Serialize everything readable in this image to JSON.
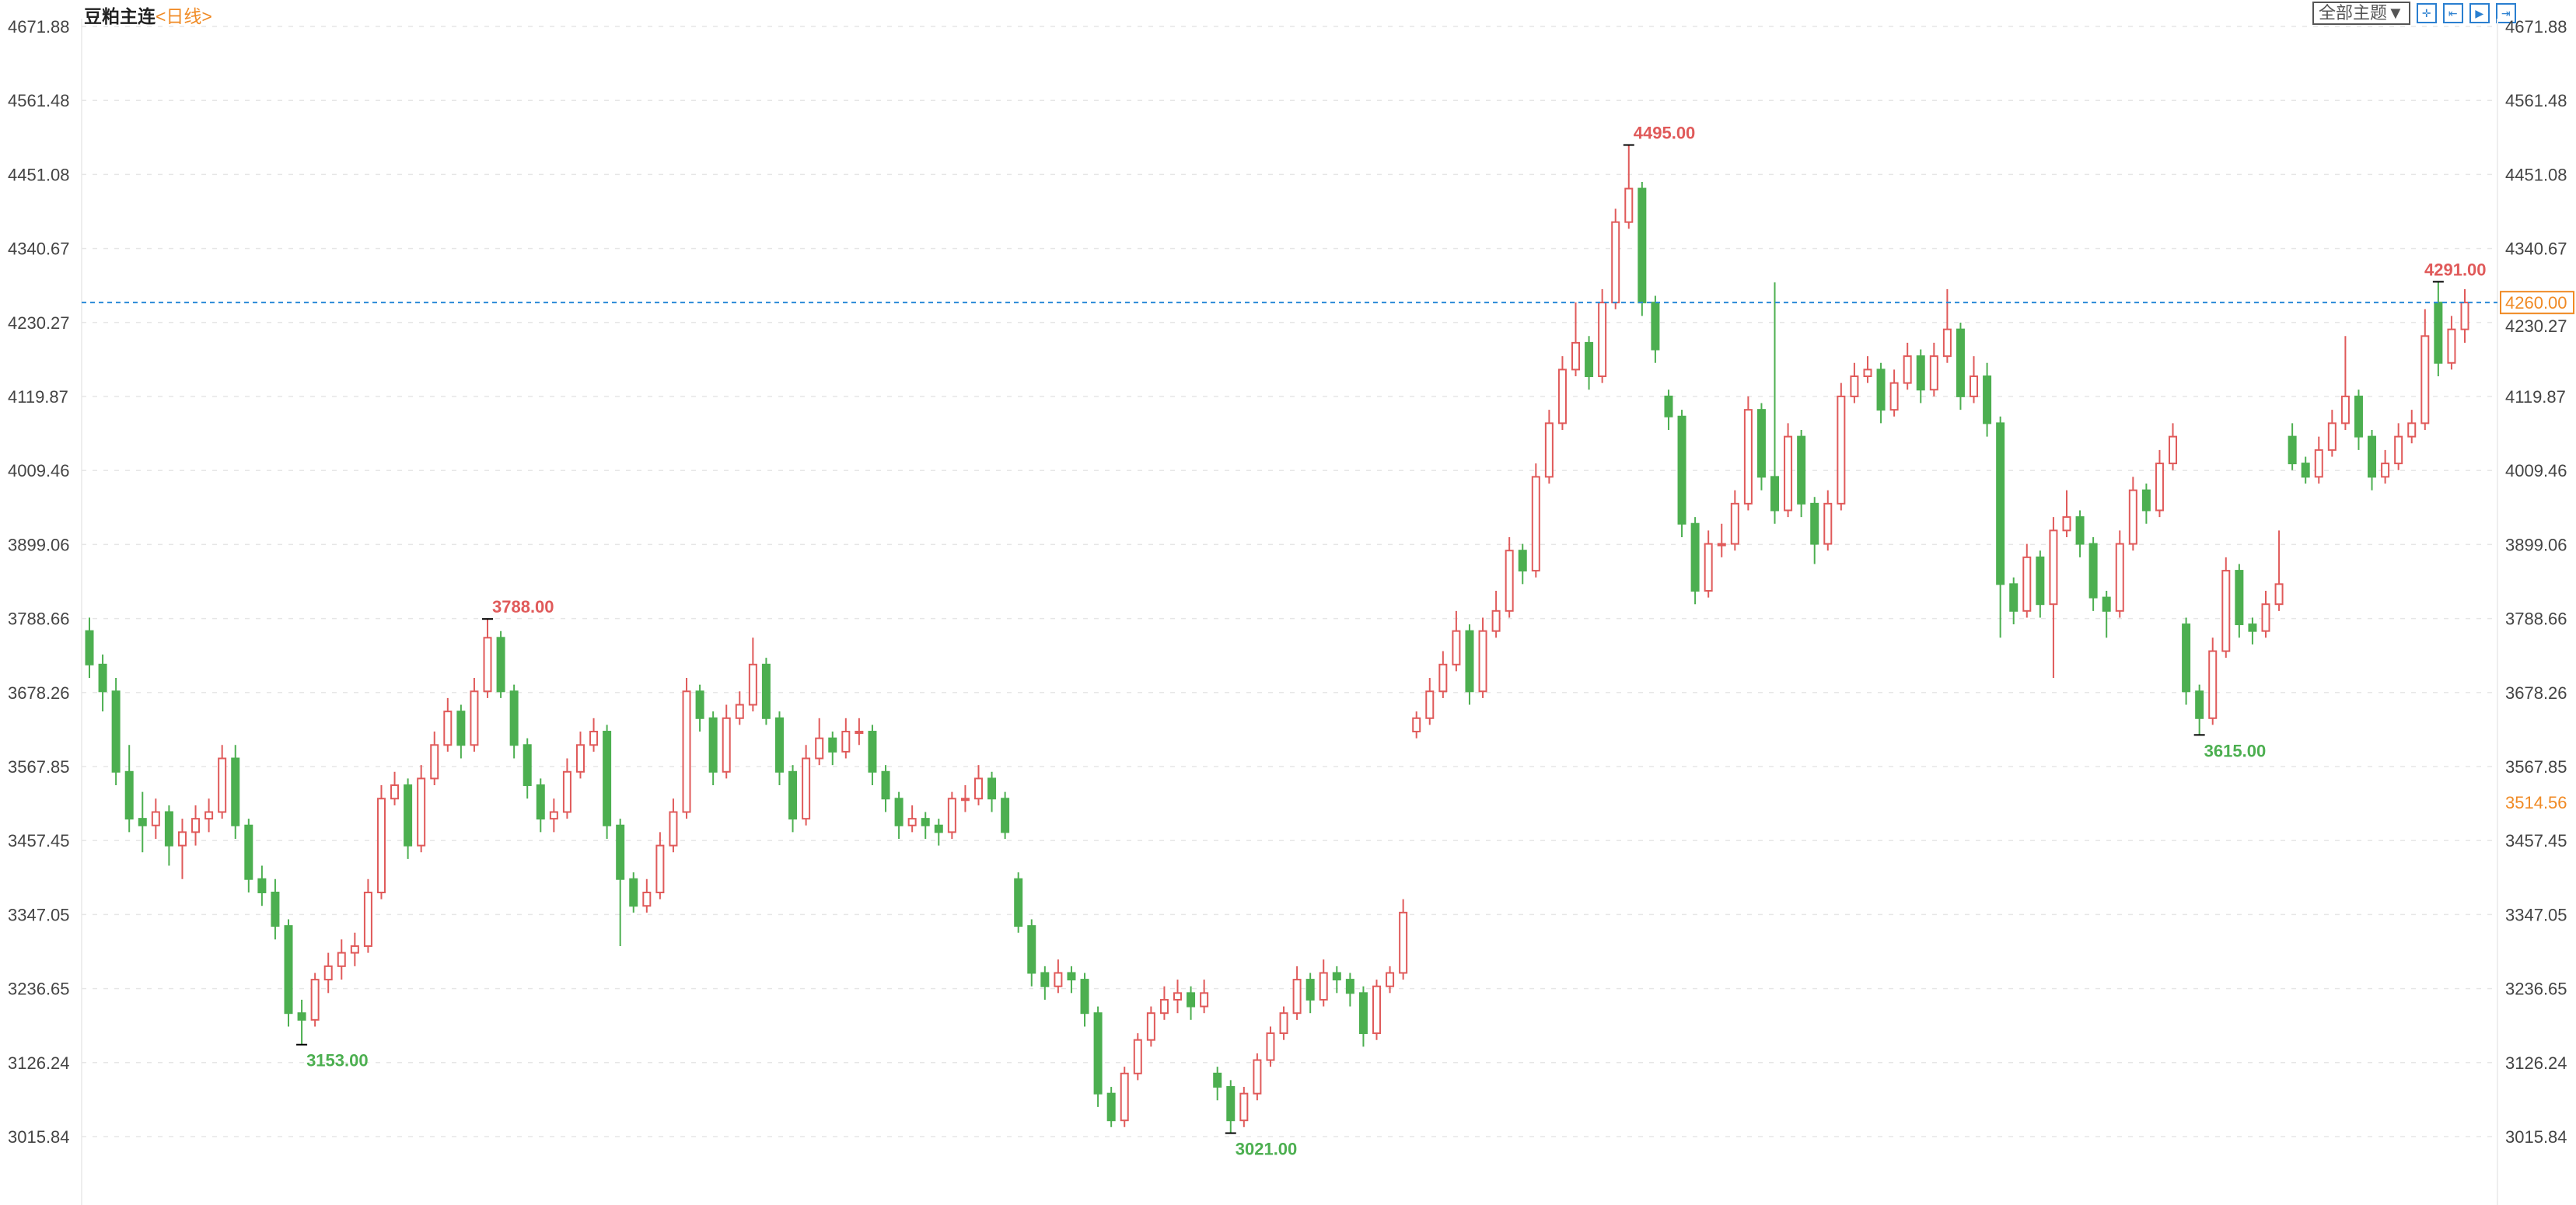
{
  "header": {
    "title": "豆粕主连",
    "period": "<日线>",
    "theme_select": "全部主题▼",
    "tools": [
      {
        "name": "crosshair-icon",
        "glyph": "✛"
      },
      {
        "name": "zoom-range-icon",
        "glyph": "⇤"
      },
      {
        "name": "play-icon",
        "glyph": "▶"
      },
      {
        "name": "exit-icon",
        "glyph": "⇥"
      }
    ]
  },
  "colors": {
    "up": "#e05a5a",
    "down": "#4caf50",
    "last_price": "#f08a24",
    "last_line": "#2a8ad8",
    "axis_text": "#444"
  },
  "chart_data": {
    "type": "candlestick",
    "ylim": [
      3015.84,
      4671.88
    ],
    "yticks": [
      "4671.88",
      "4561.48",
      "4451.08",
      "4340.67",
      "4230.27",
      "4119.87",
      "4009.46",
      "3899.06",
      "3788.66",
      "3678.26",
      "3567.85",
      "3457.45",
      "3347.05",
      "3236.65",
      "3126.24",
      "3015.84"
    ],
    "last_price": {
      "value": 4260,
      "label": "4260.00"
    },
    "axis_marker": {
      "value": 3514.56,
      "label": "3514.56"
    },
    "annotations": [
      {
        "label": "3788.00",
        "price": 3788,
        "type": "high"
      },
      {
        "label": "3153.00",
        "price": 3153,
        "type": "low"
      },
      {
        "label": "3021.00",
        "price": 3021,
        "type": "low"
      },
      {
        "label": "4495.00",
        "price": 4495,
        "type": "high"
      },
      {
        "label": "3615.00",
        "price": 3615,
        "type": "low"
      },
      {
        "label": "4291.00",
        "price": 4291,
        "type": "high"
      }
    ],
    "ohlc": [
      [
        3770,
        3790,
        3700,
        3720
      ],
      [
        3720,
        3735,
        3650,
        3680
      ],
      [
        3680,
        3700,
        3540,
        3560
      ],
      [
        3560,
        3600,
        3470,
        3490
      ],
      [
        3490,
        3530,
        3440,
        3480
      ],
      [
        3480,
        3520,
        3460,
        3500
      ],
      [
        3500,
        3510,
        3420,
        3450
      ],
      [
        3450,
        3490,
        3400,
        3470
      ],
      [
        3470,
        3510,
        3450,
        3490
      ],
      [
        3490,
        3520,
        3470,
        3500
      ],
      [
        3500,
        3600,
        3490,
        3580
      ],
      [
        3580,
        3600,
        3460,
        3480
      ],
      [
        3480,
        3490,
        3380,
        3400
      ],
      [
        3400,
        3420,
        3360,
        3380
      ],
      [
        3380,
        3400,
        3310,
        3330
      ],
      [
        3330,
        3340,
        3180,
        3200
      ],
      [
        3200,
        3220,
        3153,
        3190
      ],
      [
        3190,
        3260,
        3180,
        3250
      ],
      [
        3250,
        3290,
        3230,
        3270
      ],
      [
        3270,
        3310,
        3250,
        3290
      ],
      [
        3290,
        3320,
        3270,
        3300
      ],
      [
        3300,
        3400,
        3290,
        3380
      ],
      [
        3380,
        3540,
        3370,
        3520
      ],
      [
        3520,
        3560,
        3510,
        3540
      ],
      [
        3540,
        3550,
        3430,
        3450
      ],
      [
        3450,
        3570,
        3440,
        3550
      ],
      [
        3550,
        3620,
        3540,
        3600
      ],
      [
        3600,
        3670,
        3590,
        3650
      ],
      [
        3650,
        3660,
        3580,
        3600
      ],
      [
        3600,
        3700,
        3590,
        3680
      ],
      [
        3680,
        3788,
        3670,
        3760
      ],
      [
        3760,
        3770,
        3670,
        3680
      ],
      [
        3680,
        3690,
        3580,
        3600
      ],
      [
        3600,
        3610,
        3520,
        3540
      ],
      [
        3540,
        3550,
        3470,
        3490
      ],
      [
        3490,
        3520,
        3470,
        3500
      ],
      [
        3500,
        3580,
        3490,
        3560
      ],
      [
        3560,
        3620,
        3550,
        3600
      ],
      [
        3600,
        3640,
        3590,
        3620
      ],
      [
        3620,
        3630,
        3460,
        3480
      ],
      [
        3480,
        3490,
        3300,
        3400
      ],
      [
        3400,
        3410,
        3350,
        3360
      ],
      [
        3360,
        3400,
        3350,
        3380
      ],
      [
        3380,
        3470,
        3370,
        3450
      ],
      [
        3450,
        3520,
        3440,
        3500
      ],
      [
        3500,
        3700,
        3490,
        3680
      ],
      [
        3680,
        3690,
        3620,
        3640
      ],
      [
        3640,
        3650,
        3540,
        3560
      ],
      [
        3560,
        3660,
        3550,
        3640
      ],
      [
        3640,
        3680,
        3630,
        3660
      ],
      [
        3660,
        3760,
        3650,
        3720
      ],
      [
        3720,
        3730,
        3630,
        3640
      ],
      [
        3640,
        3650,
        3540,
        3560
      ],
      [
        3560,
        3570,
        3470,
        3490
      ],
      [
        3490,
        3600,
        3480,
        3580
      ],
      [
        3580,
        3640,
        3570,
        3610
      ],
      [
        3610,
        3620,
        3570,
        3590
      ],
      [
        3590,
        3640,
        3580,
        3620
      ],
      [
        3620,
        3640,
        3600,
        3620
      ],
      [
        3620,
        3630,
        3540,
        3560
      ],
      [
        3560,
        3570,
        3500,
        3520
      ],
      [
        3520,
        3530,
        3460,
        3480
      ],
      [
        3480,
        3510,
        3470,
        3490
      ],
      [
        3490,
        3500,
        3460,
        3480
      ],
      [
        3480,
        3490,
        3450,
        3470
      ],
      [
        3470,
        3530,
        3460,
        3520
      ],
      [
        3520,
        3540,
        3500,
        3520
      ],
      [
        3520,
        3570,
        3510,
        3550
      ],
      [
        3550,
        3560,
        3500,
        3520
      ],
      [
        3520,
        3530,
        3460,
        3470
      ],
      [
        3400,
        3410,
        3320,
        3330
      ],
      [
        3330,
        3340,
        3240,
        3260
      ],
      [
        3260,
        3270,
        3220,
        3240
      ],
      [
        3240,
        3280,
        3230,
        3260
      ],
      [
        3260,
        3270,
        3230,
        3250
      ],
      [
        3250,
        3260,
        3180,
        3200
      ],
      [
        3200,
        3210,
        3060,
        3080
      ],
      [
        3080,
        3090,
        3030,
        3040
      ],
      [
        3040,
        3120,
        3030,
        3110
      ],
      [
        3110,
        3170,
        3100,
        3160
      ],
      [
        3160,
        3210,
        3150,
        3200
      ],
      [
        3200,
        3240,
        3190,
        3220
      ],
      [
        3220,
        3250,
        3200,
        3230
      ],
      [
        3230,
        3240,
        3190,
        3210
      ],
      [
        3210,
        3250,
        3200,
        3230
      ],
      [
        3110,
        3120,
        3070,
        3090
      ],
      [
        3090,
        3100,
        3021,
        3040
      ],
      [
        3040,
        3090,
        3030,
        3080
      ],
      [
        3080,
        3140,
        3070,
        3130
      ],
      [
        3130,
        3180,
        3120,
        3170
      ],
      [
        3170,
        3210,
        3160,
        3200
      ],
      [
        3200,
        3270,
        3190,
        3250
      ],
      [
        3250,
        3260,
        3200,
        3220
      ],
      [
        3220,
        3280,
        3210,
        3260
      ],
      [
        3260,
        3270,
        3230,
        3250
      ],
      [
        3250,
        3260,
        3210,
        3230
      ],
      [
        3230,
        3240,
        3150,
        3170
      ],
      [
        3170,
        3250,
        3160,
        3240
      ],
      [
        3240,
        3270,
        3230,
        3260
      ],
      [
        3260,
        3370,
        3250,
        3350
      ],
      [
        3620,
        3650,
        3610,
        3640
      ],
      [
        3640,
        3700,
        3630,
        3680
      ],
      [
        3680,
        3740,
        3670,
        3720
      ],
      [
        3720,
        3800,
        3710,
        3770
      ],
      [
        3770,
        3780,
        3660,
        3680
      ],
      [
        3680,
        3790,
        3670,
        3770
      ],
      [
        3770,
        3830,
        3760,
        3800
      ],
      [
        3800,
        3910,
        3790,
        3890
      ],
      [
        3890,
        3900,
        3840,
        3860
      ],
      [
        3860,
        4020,
        3850,
        4000
      ],
      [
        4000,
        4100,
        3990,
        4080
      ],
      [
        4080,
        4180,
        4070,
        4160
      ],
      [
        4160,
        4260,
        4150,
        4200
      ],
      [
        4200,
        4210,
        4130,
        4150
      ],
      [
        4150,
        4280,
        4140,
        4260
      ],
      [
        4260,
        4400,
        4250,
        4380
      ],
      [
        4380,
        4495,
        4370,
        4430
      ],
      [
        4430,
        4440,
        4240,
        4260
      ],
      [
        4260,
        4270,
        4170,
        4190
      ],
      [
        4120,
        4130,
        4070,
        4090
      ],
      [
        4090,
        4100,
        3910,
        3930
      ],
      [
        3930,
        3940,
        3810,
        3830
      ],
      [
        3830,
        3920,
        3820,
        3900
      ],
      [
        3900,
        3930,
        3880,
        3900
      ],
      [
        3900,
        3980,
        3890,
        3960
      ],
      [
        3960,
        4120,
        3950,
        4100
      ],
      [
        4100,
        4110,
        3980,
        4000
      ],
      [
        4000,
        4290,
        3930,
        3950
      ],
      [
        3950,
        4080,
        3940,
        4060
      ],
      [
        4060,
        4070,
        3940,
        3960
      ],
      [
        3960,
        3970,
        3870,
        3900
      ],
      [
        3900,
        3980,
        3890,
        3960
      ],
      [
        3960,
        4140,
        3950,
        4120
      ],
      [
        4120,
        4170,
        4110,
        4150
      ],
      [
        4150,
        4180,
        4140,
        4160
      ],
      [
        4160,
        4170,
        4080,
        4100
      ],
      [
        4100,
        4160,
        4090,
        4140
      ],
      [
        4140,
        4200,
        4130,
        4180
      ],
      [
        4180,
        4190,
        4110,
        4130
      ],
      [
        4130,
        4200,
        4120,
        4180
      ],
      [
        4180,
        4280,
        4170,
        4220
      ],
      [
        4220,
        4230,
        4100,
        4120
      ],
      [
        4120,
        4180,
        4110,
        4150
      ],
      [
        4150,
        4170,
        4060,
        4080
      ],
      [
        4080,
        4090,
        3760,
        3840
      ],
      [
        3840,
        3850,
        3780,
        3800
      ],
      [
        3800,
        3900,
        3790,
        3880
      ],
      [
        3880,
        3890,
        3790,
        3810
      ],
      [
        3810,
        3940,
        3700,
        3920
      ],
      [
        3920,
        3980,
        3910,
        3940
      ],
      [
        3940,
        3950,
        3880,
        3900
      ],
      [
        3900,
        3910,
        3800,
        3820
      ],
      [
        3820,
        3830,
        3760,
        3800
      ],
      [
        3800,
        3920,
        3790,
        3900
      ],
      [
        3900,
        4000,
        3890,
        3980
      ],
      [
        3980,
        3990,
        3930,
        3950
      ],
      [
        3950,
        4040,
        3940,
        4020
      ],
      [
        4020,
        4080,
        4010,
        4060
      ],
      [
        3780,
        3790,
        3660,
        3680
      ],
      [
        3680,
        3690,
        3615,
        3640
      ],
      [
        3640,
        3760,
        3630,
        3740
      ],
      [
        3740,
        3880,
        3730,
        3860
      ],
      [
        3860,
        3870,
        3760,
        3780
      ],
      [
        3780,
        3790,
        3750,
        3770
      ],
      [
        3770,
        3830,
        3760,
        3810
      ],
      [
        3810,
        3920,
        3800,
        3840
      ],
      [
        4060,
        4080,
        4010,
        4020
      ],
      [
        4020,
        4030,
        3990,
        4000
      ],
      [
        4000,
        4060,
        3990,
        4040
      ],
      [
        4040,
        4100,
        4030,
        4080
      ],
      [
        4080,
        4210,
        4070,
        4120
      ],
      [
        4120,
        4130,
        4040,
        4060
      ],
      [
        4060,
        4070,
        3980,
        4000
      ],
      [
        4000,
        4040,
        3990,
        4020
      ],
      [
        4020,
        4080,
        4010,
        4060
      ],
      [
        4060,
        4100,
        4050,
        4080
      ],
      [
        4080,
        4250,
        4070,
        4210
      ],
      [
        4260,
        4291,
        4150,
        4170
      ],
      [
        4170,
        4240,
        4160,
        4220
      ],
      [
        4220,
        4280,
        4200,
        4260
      ]
    ]
  }
}
